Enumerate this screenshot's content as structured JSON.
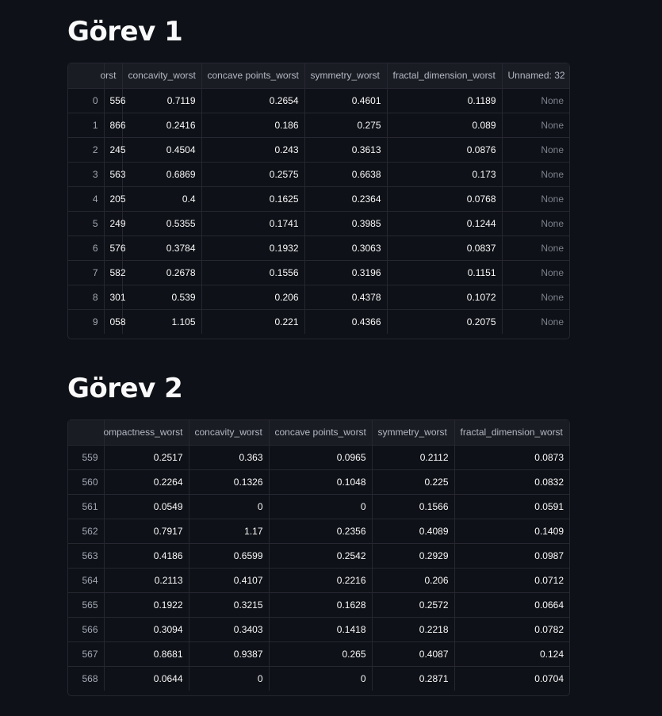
{
  "gorev1": {
    "title": "Görev 1",
    "columns": [
      "orst",
      "concavity_worst",
      "concave points_worst",
      "symmetry_worst",
      "fractal_dimension_worst",
      "Unnamed: 32"
    ],
    "rows": [
      {
        "index": "0",
        "cells": [
          "556",
          "0.7119",
          "0.2654",
          "0.4601",
          "0.1189",
          "None"
        ]
      },
      {
        "index": "1",
        "cells": [
          "866",
          "0.2416",
          "0.186",
          "0.275",
          "0.089",
          "None"
        ]
      },
      {
        "index": "2",
        "cells": [
          "245",
          "0.4504",
          "0.243",
          "0.3613",
          "0.0876",
          "None"
        ]
      },
      {
        "index": "3",
        "cells": [
          "563",
          "0.6869",
          "0.2575",
          "0.6638",
          "0.173",
          "None"
        ]
      },
      {
        "index": "4",
        "cells": [
          "205",
          "0.4",
          "0.1625",
          "0.2364",
          "0.0768",
          "None"
        ]
      },
      {
        "index": "5",
        "cells": [
          "249",
          "0.5355",
          "0.1741",
          "0.3985",
          "0.1244",
          "None"
        ]
      },
      {
        "index": "6",
        "cells": [
          "576",
          "0.3784",
          "0.1932",
          "0.3063",
          "0.0837",
          "None"
        ]
      },
      {
        "index": "7",
        "cells": [
          "582",
          "0.2678",
          "0.1556",
          "0.3196",
          "0.1151",
          "None"
        ]
      },
      {
        "index": "8",
        "cells": [
          "301",
          "0.539",
          "0.206",
          "0.4378",
          "0.1072",
          "None"
        ]
      },
      {
        "index": "9",
        "cells": [
          "058",
          "1.105",
          "0.221",
          "0.4366",
          "0.2075",
          "None"
        ]
      }
    ]
  },
  "gorev2": {
    "title": "Görev 2",
    "columns": [
      "ompactness_worst",
      "concavity_worst",
      "concave points_worst",
      "symmetry_worst",
      "fractal_dimension_worst"
    ],
    "rows": [
      {
        "index": "559",
        "cells": [
          "0.2517",
          "0.363",
          "0.0965",
          "0.2112",
          "0.0873"
        ]
      },
      {
        "index": "560",
        "cells": [
          "0.2264",
          "0.1326",
          "0.1048",
          "0.225",
          "0.0832"
        ]
      },
      {
        "index": "561",
        "cells": [
          "0.0549",
          "0",
          "0",
          "0.1566",
          "0.0591"
        ]
      },
      {
        "index": "562",
        "cells": [
          "0.7917",
          "1.17",
          "0.2356",
          "0.4089",
          "0.1409"
        ]
      },
      {
        "index": "563",
        "cells": [
          "0.4186",
          "0.6599",
          "0.2542",
          "0.2929",
          "0.0987"
        ]
      },
      {
        "index": "564",
        "cells": [
          "0.2113",
          "0.4107",
          "0.2216",
          "0.206",
          "0.0712"
        ]
      },
      {
        "index": "565",
        "cells": [
          "0.1922",
          "0.3215",
          "0.1628",
          "0.2572",
          "0.0664"
        ]
      },
      {
        "index": "566",
        "cells": [
          "0.3094",
          "0.3403",
          "0.1418",
          "0.2218",
          "0.0782"
        ]
      },
      {
        "index": "567",
        "cells": [
          "0.8681",
          "0.9387",
          "0.265",
          "0.4087",
          "0.124"
        ]
      },
      {
        "index": "568",
        "cells": [
          "0.0644",
          "0",
          "0",
          "0.2871",
          "0.0704"
        ]
      }
    ]
  }
}
